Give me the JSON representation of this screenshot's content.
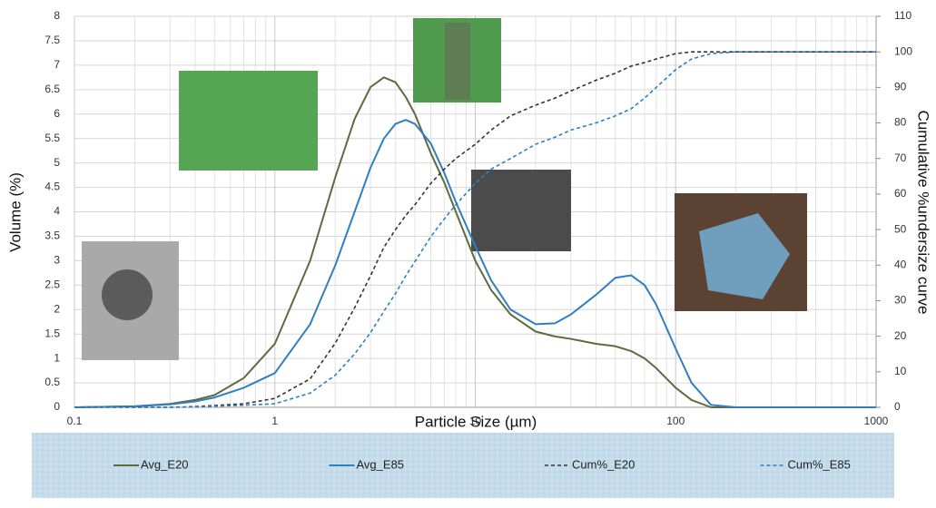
{
  "chart_data": {
    "type": "line",
    "xlabel": "Particle Size (µm)",
    "ylabel": "Volume (%)",
    "y2label": "Cumulative %undersize curve",
    "log_x": true,
    "grid": true,
    "legend": "bottom",
    "x": [
      0.1,
      0.2,
      0.3,
      0.4,
      0.5,
      0.7,
      1,
      1.5,
      2,
      2.5,
      3,
      3.5,
      4,
      4.5,
      5,
      6,
      7,
      8,
      10,
      12,
      15,
      20,
      25,
      30,
      40,
      50,
      60,
      70,
      80,
      100,
      120,
      150,
      200,
      300,
      500,
      1000
    ],
    "series": [
      {
        "name": "Avg_E20",
        "color": "#5d6b3e",
        "dash": false,
        "axis": "y",
        "values": [
          0,
          0.02,
          0.07,
          0.15,
          0.25,
          0.6,
          1.3,
          3.0,
          4.7,
          5.9,
          6.55,
          6.75,
          6.65,
          6.35,
          6.0,
          5.2,
          4.6,
          4.0,
          3.0,
          2.4,
          1.9,
          1.55,
          1.45,
          1.4,
          1.3,
          1.25,
          1.15,
          1.0,
          0.8,
          0.4,
          0.15,
          0,
          0,
          0,
          0,
          0
        ]
      },
      {
        "name": "Avg_E85",
        "color": "#2f7fc1",
        "dash": false,
        "axis": "y",
        "values": [
          0,
          0.02,
          0.06,
          0.12,
          0.2,
          0.4,
          0.7,
          1.7,
          2.9,
          4.0,
          4.9,
          5.5,
          5.8,
          5.88,
          5.8,
          5.4,
          4.8,
          4.2,
          3.3,
          2.6,
          2.0,
          1.7,
          1.72,
          1.9,
          2.3,
          2.65,
          2.7,
          2.5,
          2.1,
          1.2,
          0.5,
          0.05,
          0,
          0,
          0,
          0
        ]
      },
      {
        "name": "Cum%_E20",
        "color": "#333333",
        "dash": true,
        "axis": "y2",
        "values": [
          0,
          0,
          0,
          0.2,
          0.5,
          1,
          2.5,
          8,
          18,
          28,
          37,
          45,
          50,
          54,
          57,
          63,
          67,
          70,
          74,
          78,
          82,
          85,
          87,
          89,
          92,
          94,
          96,
          97,
          98,
          99.5,
          100,
          100,
          100,
          100,
          100,
          100
        ]
      },
      {
        "name": "Cum%_E85",
        "color": "#2f7fc1",
        "dash": true,
        "axis": "y2",
        "values": [
          0,
          0,
          0,
          0.1,
          0.3,
          0.6,
          1,
          4,
          9,
          15,
          21,
          27,
          32,
          37,
          41,
          48,
          53,
          57,
          63,
          67,
          70,
          74,
          76,
          78,
          80,
          82,
          84,
          87,
          90,
          95,
          98,
          99.5,
          100,
          100,
          100,
          100
        ]
      }
    ],
    "xlim": [
      0.1,
      1000
    ],
    "xticks": [
      0.1,
      1,
      10,
      100,
      1000
    ],
    "ylim": [
      0,
      8
    ],
    "yticks": [
      0,
      0.5,
      1,
      1.5,
      2,
      2.5,
      3,
      3.5,
      4,
      4.5,
      5,
      5.5,
      6,
      6.5,
      7,
      7.5,
      8
    ],
    "y2lim": [
      0,
      110
    ],
    "y2ticks": [
      0,
      10,
      20,
      30,
      40,
      50,
      60,
      70,
      80,
      90,
      100,
      110
    ]
  }
}
